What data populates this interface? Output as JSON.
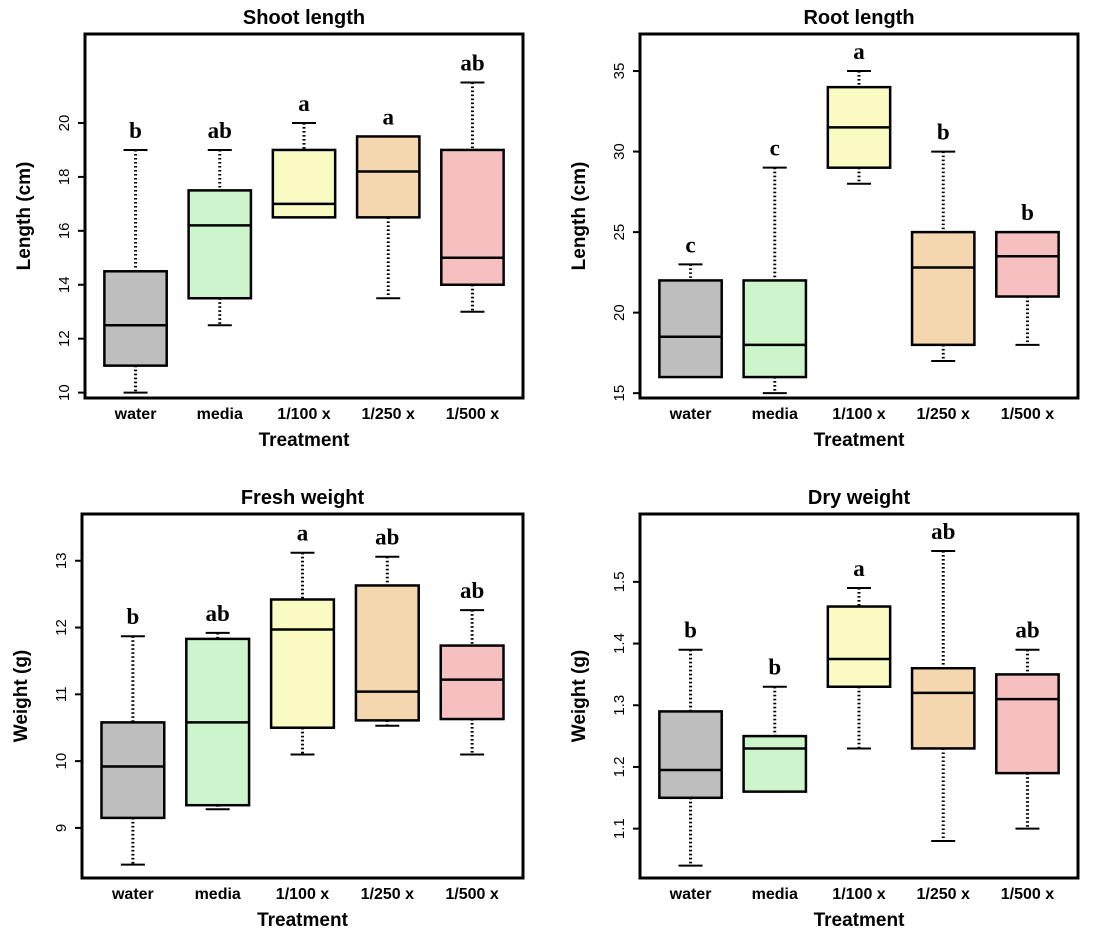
{
  "chart_data": [
    {
      "type": "boxplot",
      "title": "Shoot length",
      "xlabel": "Treatment",
      "ylabel": "Length (cm)",
      "ylim": [
        9.8,
        23.3
      ],
      "yticks": [
        10,
        12,
        14,
        16,
        18,
        20
      ],
      "categories": [
        "water",
        "media",
        "1/100 x",
        "1/250 x",
        "1/500 x"
      ],
      "colors": [
        "#bebebe",
        "#ccf5cc",
        "#fafac3",
        "#f5d7af",
        "#f7c0c0"
      ],
      "boxes": [
        {
          "whisker_low": 10,
          "q1": 11,
          "median": 12.5,
          "q3": 14.5,
          "whisker_high": 19,
          "letter": "b"
        },
        {
          "whisker_low": 12.5,
          "q1": 13.5,
          "median": 16.2,
          "q3": 17.5,
          "whisker_high": 19,
          "letter": "ab"
        },
        {
          "whisker_low": 16.5,
          "q1": 16.5,
          "median": 17,
          "q3": 19,
          "whisker_high": 20,
          "letter": "a"
        },
        {
          "whisker_low": 13.5,
          "q1": 16.5,
          "median": 18.2,
          "q3": 19.5,
          "whisker_high": 19.5,
          "letter": "a"
        },
        {
          "whisker_low": 13,
          "q1": 14,
          "median": 15,
          "q3": 19,
          "whisker_high": 21.5,
          "letter": "ab"
        }
      ]
    },
    {
      "type": "boxplot",
      "title": "Root length",
      "xlabel": "Treatment",
      "ylabel": "Length (cm)",
      "ylim": [
        14.7,
        37.3
      ],
      "yticks": [
        15,
        20,
        25,
        30,
        35
      ],
      "categories": [
        "water",
        "media",
        "1/100 x",
        "1/250 x",
        "1/500 x"
      ],
      "colors": [
        "#bebebe",
        "#ccf5cc",
        "#fafac3",
        "#f5d7af",
        "#f7c0c0"
      ],
      "boxes": [
        {
          "whisker_low": 16,
          "q1": 16,
          "median": 18.5,
          "q3": 22,
          "whisker_high": 23,
          "letter": "c"
        },
        {
          "whisker_low": 15,
          "q1": 16,
          "median": 18,
          "q3": 22,
          "whisker_high": 29,
          "letter": "c"
        },
        {
          "whisker_low": 28,
          "q1": 29,
          "median": 31.5,
          "q3": 34,
          "whisker_high": 35,
          "letter": "a"
        },
        {
          "whisker_low": 17,
          "q1": 18,
          "median": 22.8,
          "q3": 25,
          "whisker_high": 30,
          "letter": "b"
        },
        {
          "whisker_low": 18,
          "q1": 21,
          "median": 23.5,
          "q3": 25,
          "whisker_high": 25,
          "letter": "b"
        }
      ]
    },
    {
      "type": "boxplot",
      "title": "Fresh weight",
      "xlabel": "Treatment",
      "ylabel": "Weight (g)",
      "ylim": [
        8.25,
        13.7
      ],
      "yticks": [
        9,
        10,
        11,
        12,
        13
      ],
      "categories": [
        "water",
        "media",
        "1/100 x",
        "1/250 x",
        "1/500 x"
      ],
      "colors": [
        "#bebebe",
        "#ccf5cc",
        "#fafac3",
        "#f5d7af",
        "#f7c0c0"
      ],
      "boxes": [
        {
          "whisker_low": 8.45,
          "q1": 9.15,
          "median": 9.92,
          "q3": 10.58,
          "whisker_high": 11.87,
          "letter": "b"
        },
        {
          "whisker_low": 9.28,
          "q1": 9.34,
          "median": 10.58,
          "q3": 11.83,
          "whisker_high": 11.92,
          "letter": "ab"
        },
        {
          "whisker_low": 10.1,
          "q1": 10.5,
          "median": 11.97,
          "q3": 12.42,
          "whisker_high": 13.12,
          "letter": "a"
        },
        {
          "whisker_low": 10.53,
          "q1": 10.61,
          "median": 11.04,
          "q3": 12.63,
          "whisker_high": 13.06,
          "letter": "ab"
        },
        {
          "whisker_low": 10.1,
          "q1": 10.63,
          "median": 11.22,
          "q3": 11.73,
          "whisker_high": 12.26,
          "letter": "ab"
        }
      ]
    },
    {
      "type": "boxplot",
      "title": "Dry weight",
      "xlabel": "Treatment",
      "ylabel": "Weight (g)",
      "ylim": [
        1.02,
        1.61
      ],
      "yticks": [
        1.1,
        1.2,
        1.3,
        1.4,
        1.5
      ],
      "categories": [
        "water",
        "media",
        "1/100 x",
        "1/250 x",
        "1/500 x"
      ],
      "colors": [
        "#bebebe",
        "#ccf5cc",
        "#fafac3",
        "#f5d7af",
        "#f7c0c0"
      ],
      "boxes": [
        {
          "whisker_low": 1.04,
          "q1": 1.15,
          "median": 1.195,
          "q3": 1.29,
          "whisker_high": 1.39,
          "letter": "b"
        },
        {
          "whisker_low": 1.16,
          "q1": 1.16,
          "median": 1.23,
          "q3": 1.25,
          "whisker_high": 1.33,
          "letter": "b"
        },
        {
          "whisker_low": 1.23,
          "q1": 1.33,
          "median": 1.375,
          "q3": 1.46,
          "whisker_high": 1.49,
          "letter": "a"
        },
        {
          "whisker_low": 1.08,
          "q1": 1.23,
          "median": 1.32,
          "q3": 1.36,
          "whisker_high": 1.55,
          "letter": "ab"
        },
        {
          "whisker_low": 1.1,
          "q1": 1.19,
          "median": 1.31,
          "q3": 1.35,
          "whisker_high": 1.39,
          "letter": "ab"
        }
      ]
    }
  ]
}
